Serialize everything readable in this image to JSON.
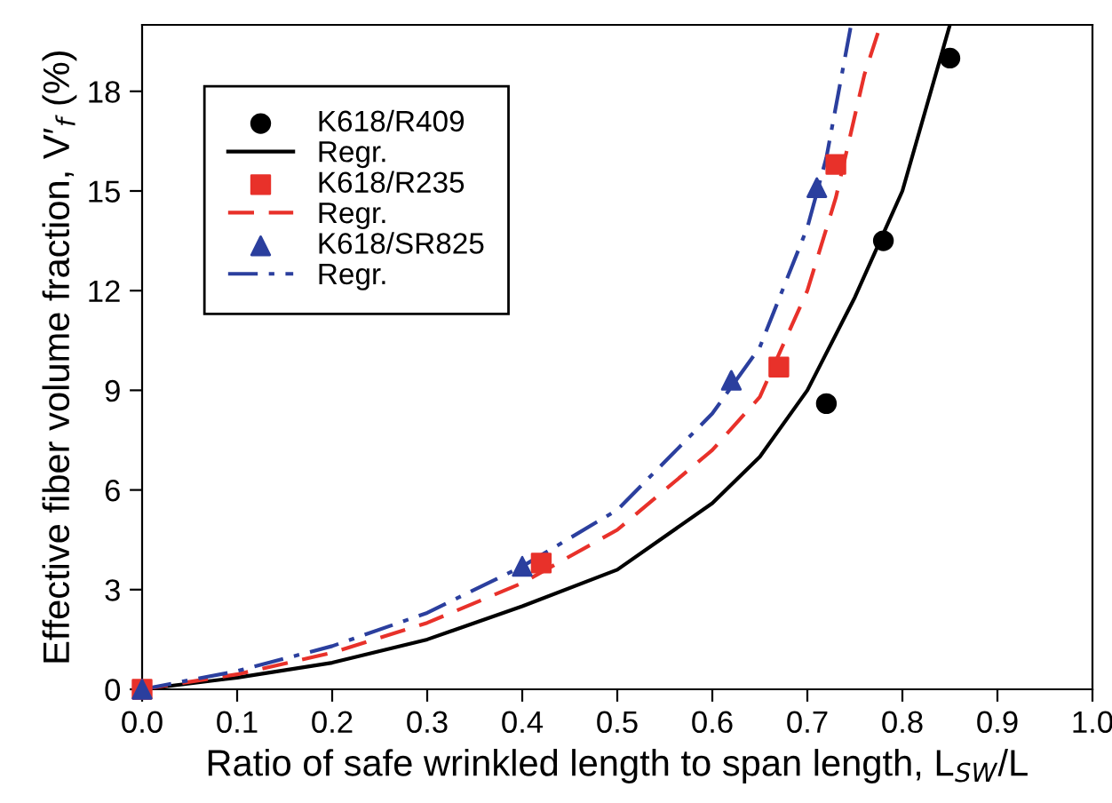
{
  "chart_data": {
    "type": "scatter",
    "xlabel": "Ratio of safe wrinkled length to span length, L$_{SW}$/L",
    "ylabel": "Effective fiber volume fraction, V′$_{f}$ (%)",
    "xlim": [
      0,
      1.0
    ],
    "ylim": [
      0,
      20
    ],
    "xticks": [
      {
        "value": 0,
        "label": "0.0"
      },
      0.1,
      0.2,
      0.3,
      0.4,
      0.5,
      0.6,
      0.7,
      0.8,
      0.9,
      {
        "value": 1,
        "label": "1.0"
      }
    ],
    "yticks": [
      0,
      3,
      6,
      9,
      12,
      15,
      18
    ],
    "grid": false,
    "legend": "top left",
    "series": [
      {
        "name": "K618/R409",
        "marker": "circle",
        "color": "#000000",
        "x": [
          0.72,
          0.78,
          0.85
        ],
        "values": [
          8.6,
          13.5,
          19.0
        ]
      },
      {
        "name": "Regr.",
        "type": "line",
        "line_style": "solid",
        "color": "#000000",
        "x": [
          0,
          0.1,
          0.2,
          0.3,
          0.4,
          0.5,
          0.6,
          0.65,
          0.7,
          0.75,
          0.8,
          0.83,
          0.85
        ],
        "values": [
          0,
          0.35,
          0.8,
          1.5,
          2.5,
          3.6,
          5.6,
          7.0,
          9.0,
          11.8,
          15.0,
          18.0,
          20.0
        ]
      },
      {
        "name": "K618/R235",
        "marker": "square",
        "color": "#e8312a",
        "x": [
          0,
          0.42,
          0.67,
          0.73
        ],
        "values": [
          0,
          3.8,
          9.7,
          15.8
        ]
      },
      {
        "name": "Regr.",
        "type": "line",
        "line_style": "dashed",
        "color": "#e8312a",
        "x": [
          0,
          0.1,
          0.2,
          0.3,
          0.4,
          0.5,
          0.6,
          0.65,
          0.7,
          0.73,
          0.76,
          0.777
        ],
        "values": [
          0,
          0.45,
          1.1,
          2.0,
          3.2,
          4.8,
          7.2,
          8.8,
          12.0,
          14.8,
          18.5,
          20.0
        ]
      },
      {
        "name": "K618/SR825",
        "marker": "triangle",
        "color": "#2b3f9e",
        "x": [
          0,
          0.4,
          0.62,
          0.71
        ],
        "values": [
          0,
          3.7,
          9.3,
          15.1
        ]
      },
      {
        "name": "Regr.",
        "type": "line",
        "line_style": "dashdot",
        "color": "#2b3f9e",
        "x": [
          0,
          0.1,
          0.2,
          0.3,
          0.4,
          0.5,
          0.6,
          0.65,
          0.7,
          0.72,
          0.746
        ],
        "values": [
          0,
          0.55,
          1.3,
          2.3,
          3.7,
          5.4,
          8.3,
          10.3,
          13.9,
          16.0,
          20.0
        ]
      }
    ]
  }
}
